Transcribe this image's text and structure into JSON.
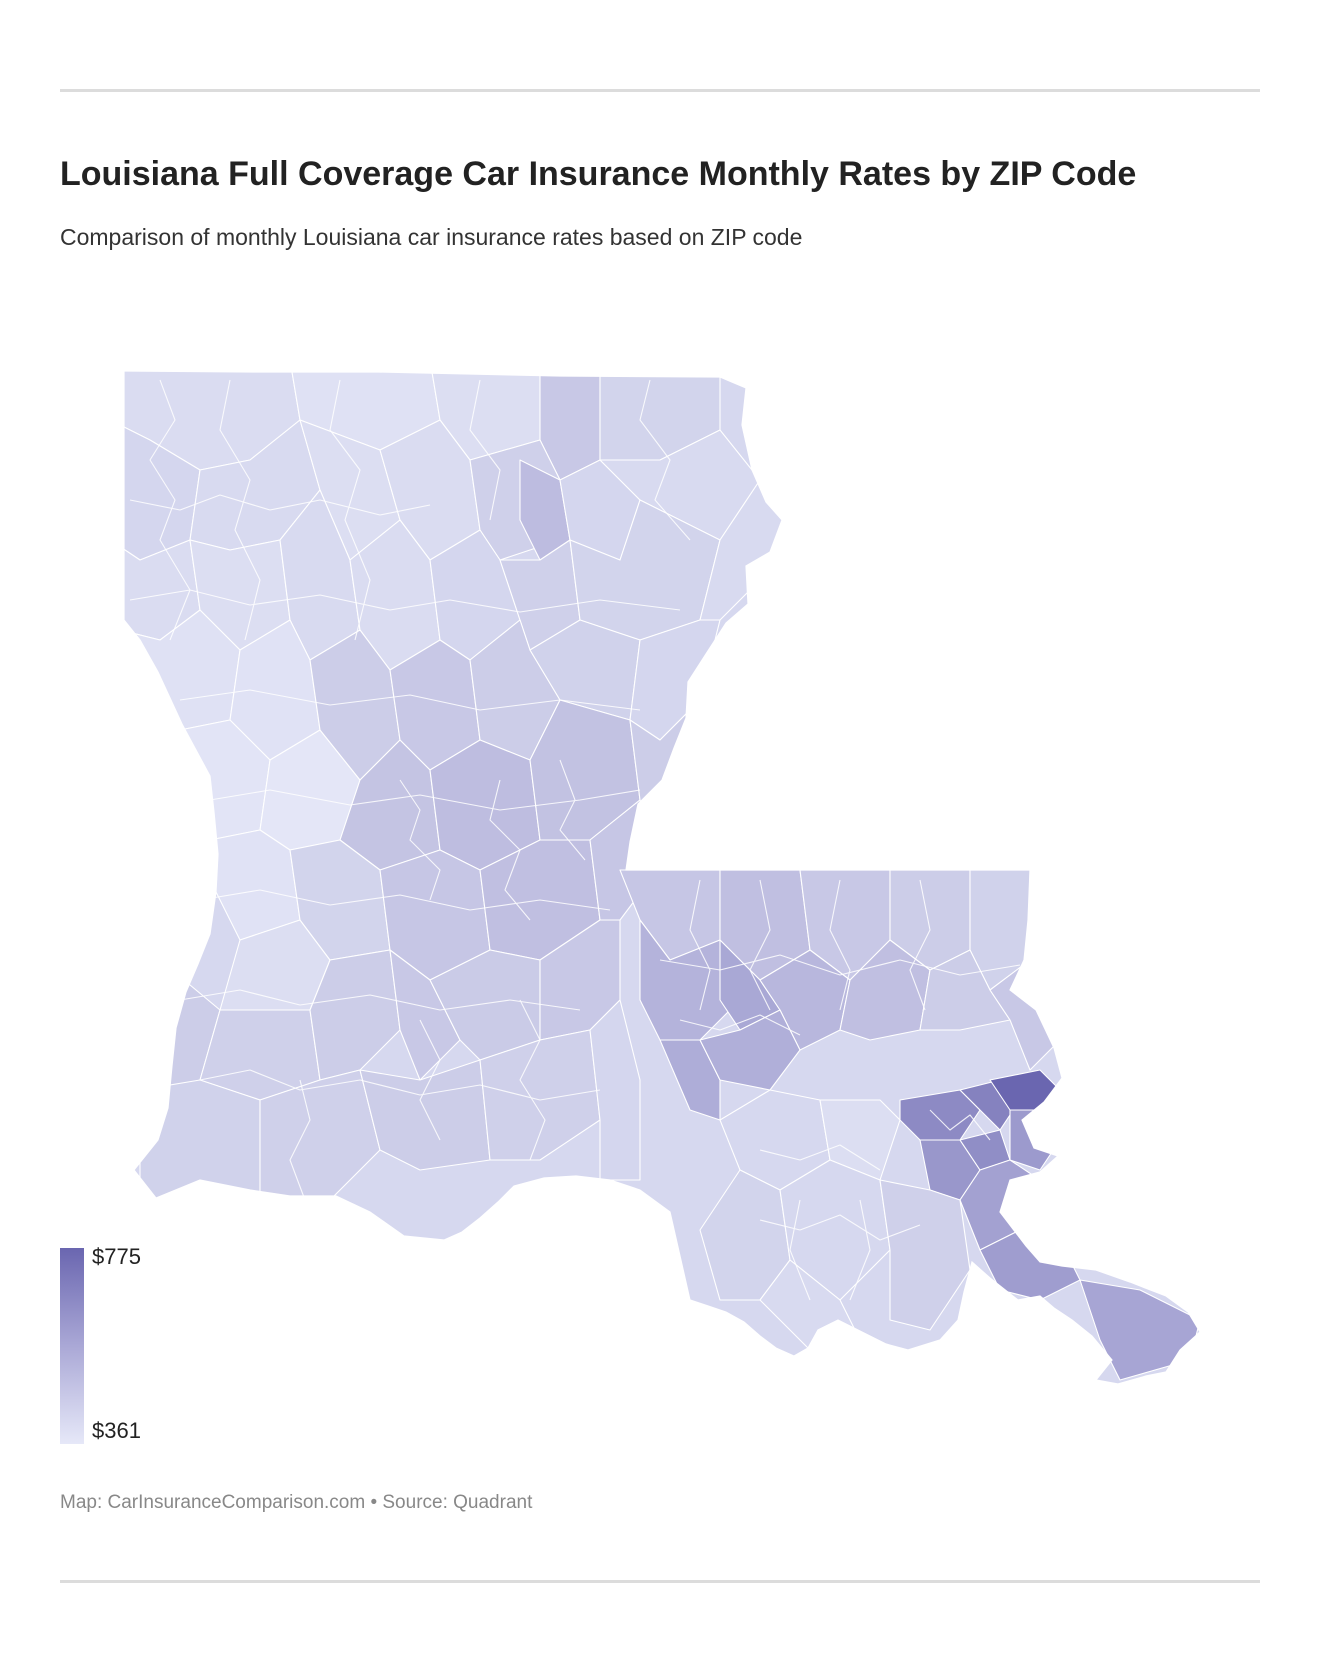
{
  "header": {
    "title": "Louisiana Full Coverage Car Insurance Monthly Rates by ZIP Code",
    "subtitle": "Comparison of monthly Louisiana car insurance rates based on ZIP code"
  },
  "legend": {
    "max_label": "$775",
    "min_label": "$361",
    "max_value": 775,
    "min_value": 361,
    "max_color": "#6a66b0",
    "min_color": "#e6e8f8"
  },
  "footer": {
    "text": "Map: CarInsuranceComparison.com • Source: Quadrant"
  },
  "colors": {
    "rule": "#dcdcdc",
    "background": "#ffffff"
  }
}
